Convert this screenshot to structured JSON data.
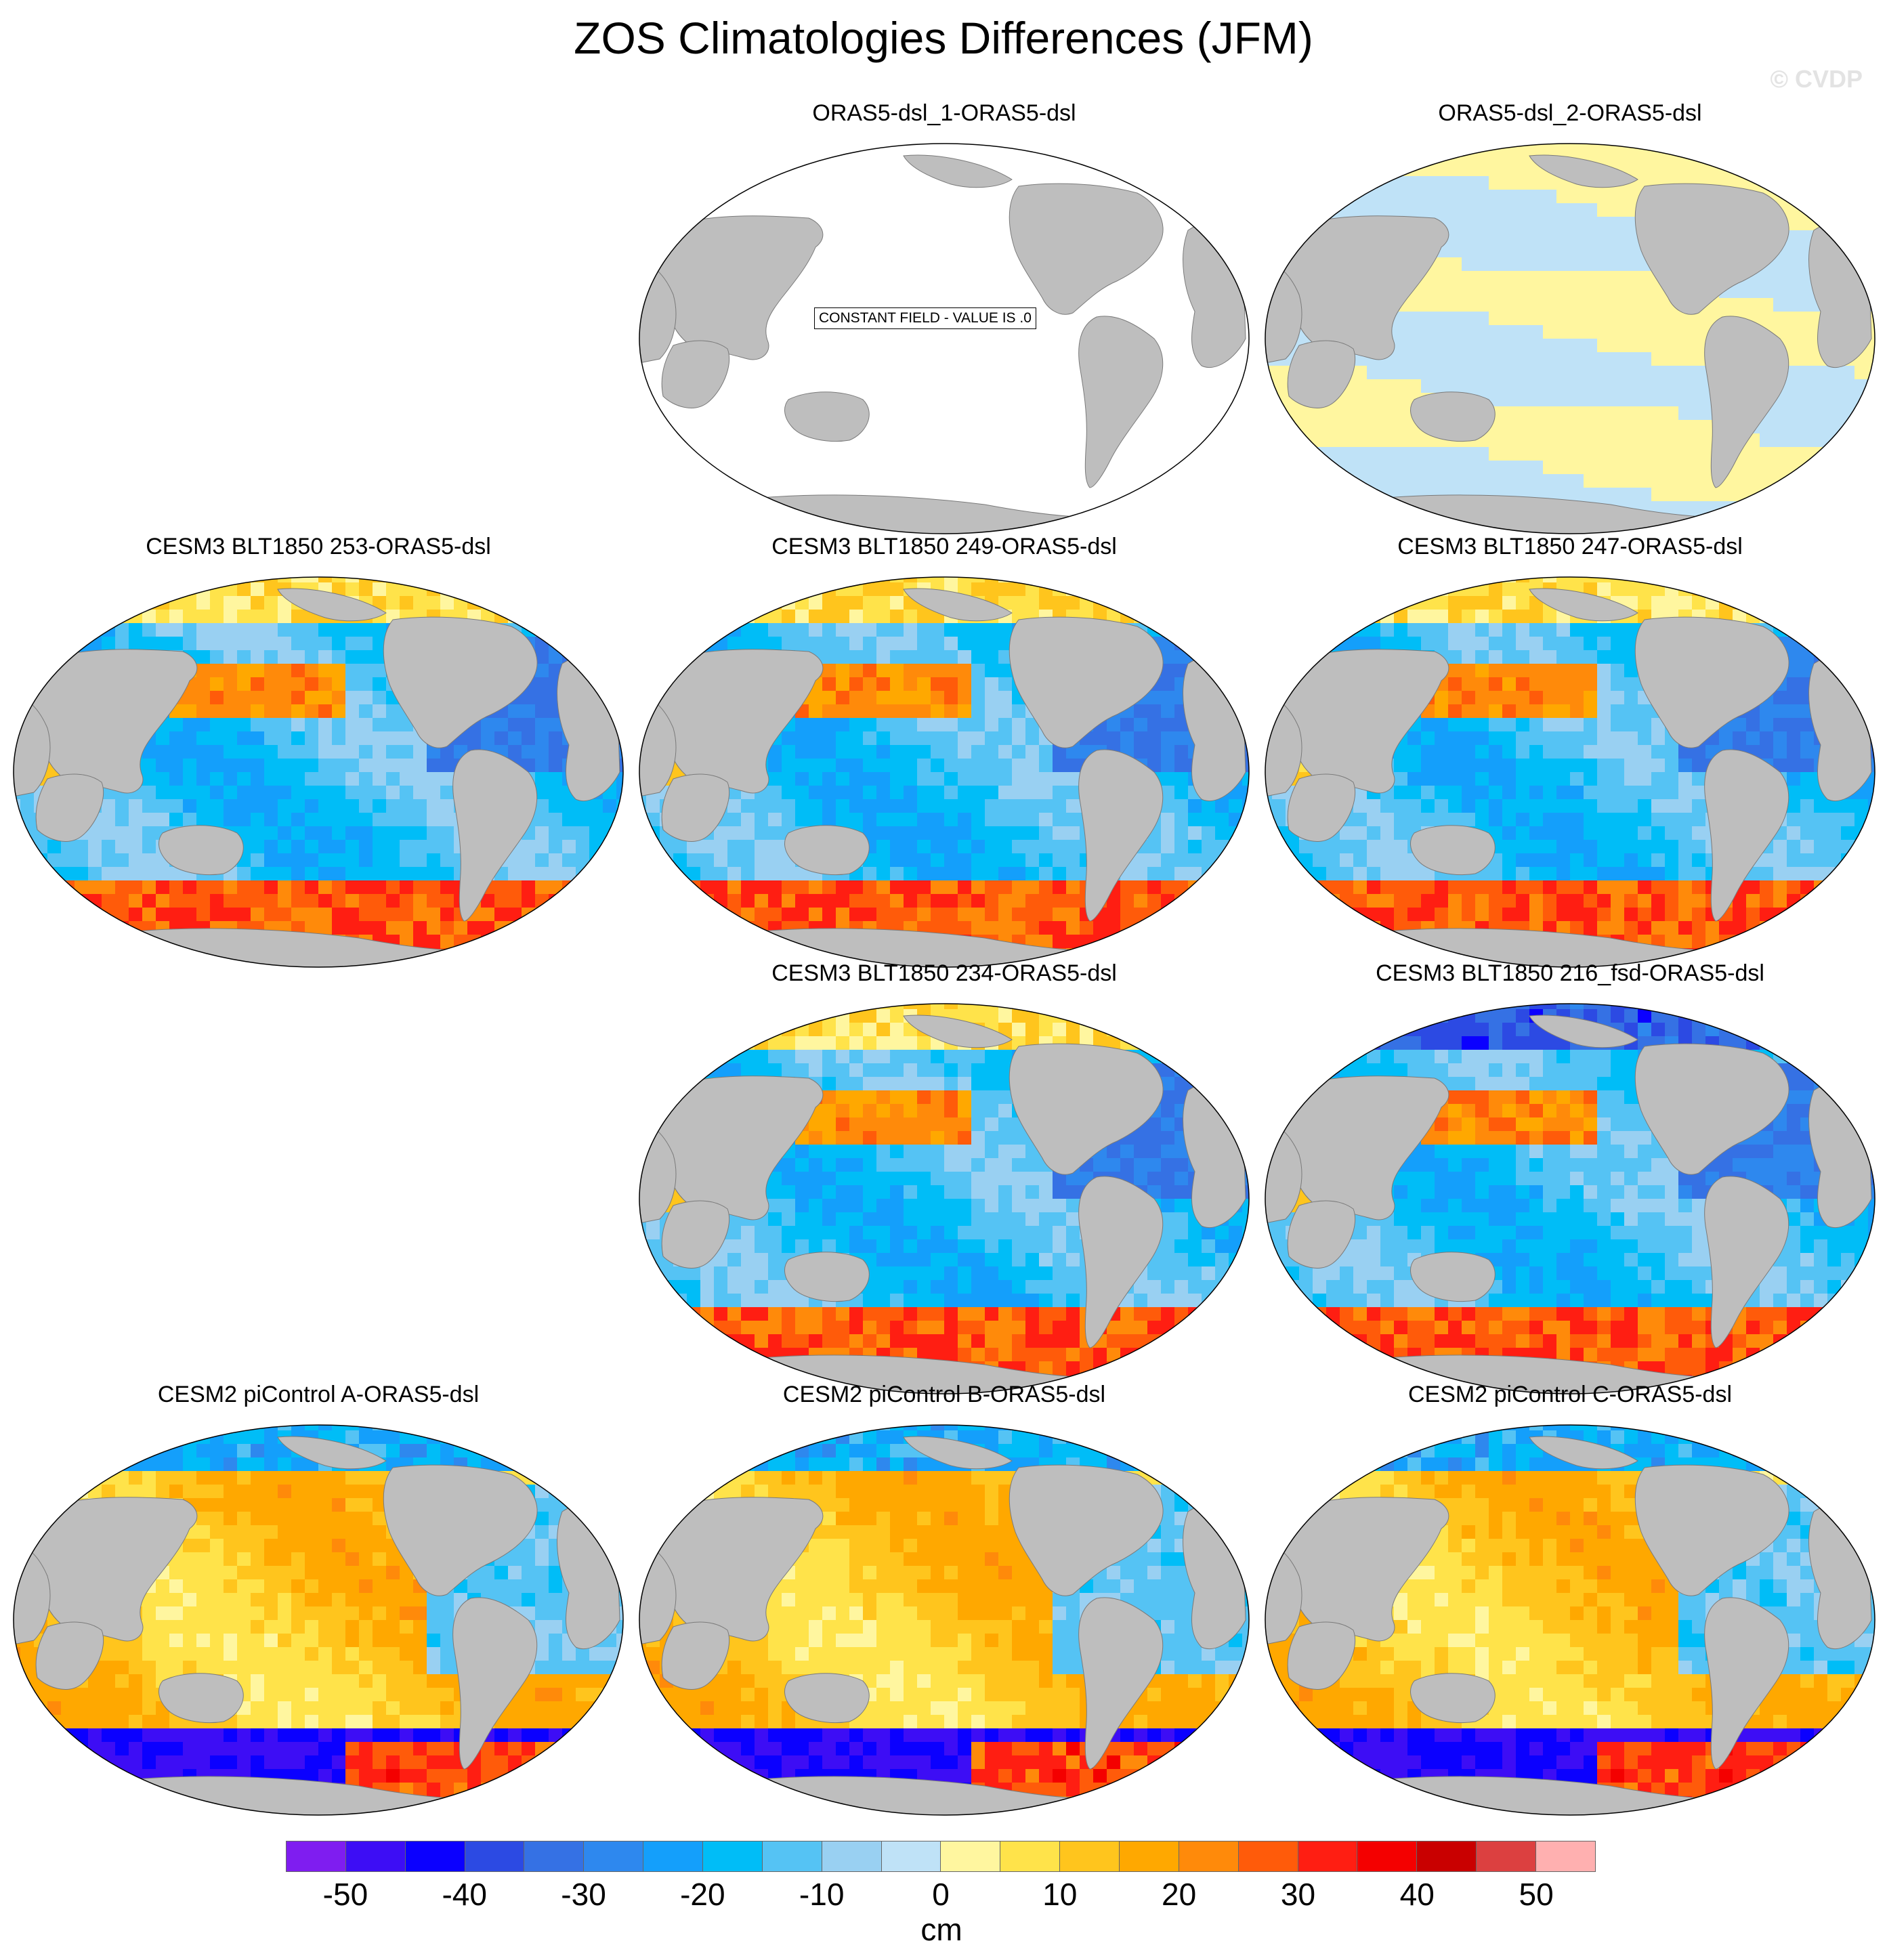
{
  "title": "ZOS Climatologies Differences (JFM)",
  "watermark": "© CVDP",
  "colorbar": {
    "unit": "cm",
    "ticks": [
      "-50",
      "-40",
      "-30",
      "-20",
      "-10",
      "0",
      "10",
      "20",
      "30",
      "40",
      "50"
    ],
    "colors": [
      "#7f1df0",
      "#3d0df5",
      "#0b00ff",
      "#2c4ae3",
      "#3571e4",
      "#2e88ee",
      "#149ffb",
      "#00bdf7",
      "#55c3f4",
      "#99d0f2",
      "#bfe2f7",
      "#fff69f",
      "#ffe34a",
      "#ffc51d",
      "#ffa800",
      "#ff8a0a",
      "#ff5b0a",
      "#ff1e12",
      "#f40000",
      "#c90000",
      "#dc4040",
      "#ffb0b0"
    ]
  },
  "panels": [
    {
      "id": "oras5-dsl-1",
      "title": "ORAS5-dsl_1-ORAS5-dsl",
      "pattern": "constant",
      "note": "CONSTANT FIELD - VALUE IS .0"
    },
    {
      "id": "oras5-dsl-2",
      "title": "ORAS5-dsl_2-ORAS5-dsl",
      "pattern": "small"
    },
    {
      "id": "blt1850-253",
      "title": "CESM3 BLT1850 253-ORAS5-dsl",
      "pattern": "cesm3"
    },
    {
      "id": "blt1850-249",
      "title": "CESM3 BLT1850 249-ORAS5-dsl",
      "pattern": "cesm3"
    },
    {
      "id": "blt1850-247",
      "title": "CESM3 BLT1850 247-ORAS5-dsl",
      "pattern": "cesm3"
    },
    {
      "id": "blt1850-234",
      "title": "CESM3 BLT1850 234-ORAS5-dsl",
      "pattern": "cesm3"
    },
    {
      "id": "blt1850-216-fsd",
      "title": "CESM3 BLT1850 216_fsd-ORAS5-dsl",
      "pattern": "cesm3b"
    },
    {
      "id": "picontrol-a",
      "title": "CESM2 piControl A-ORAS5-dsl",
      "pattern": "cesm2"
    },
    {
      "id": "picontrol-b",
      "title": "CESM2 piControl B-ORAS5-dsl",
      "pattern": "cesm2"
    },
    {
      "id": "picontrol-c",
      "title": "CESM2 piControl C-ORAS5-dsl",
      "pattern": "cesm2"
    }
  ]
}
